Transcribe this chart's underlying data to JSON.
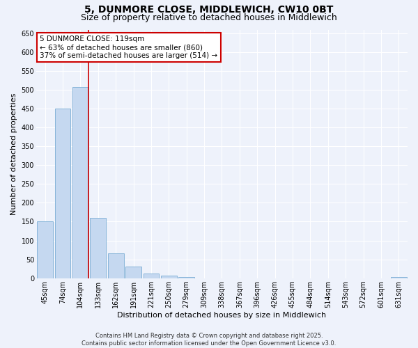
{
  "title": "5, DUNMORE CLOSE, MIDDLEWICH, CW10 0BT",
  "subtitle": "Size of property relative to detached houses in Middlewich",
  "xlabel": "Distribution of detached houses by size in Middlewich",
  "ylabel": "Number of detached properties",
  "categories": [
    "45sqm",
    "74sqm",
    "104sqm",
    "133sqm",
    "162sqm",
    "191sqm",
    "221sqm",
    "250sqm",
    "279sqm",
    "309sqm",
    "338sqm",
    "367sqm",
    "396sqm",
    "426sqm",
    "455sqm",
    "484sqm",
    "514sqm",
    "543sqm",
    "572sqm",
    "601sqm",
    "631sqm"
  ],
  "values": [
    150,
    450,
    508,
    160,
    65,
    30,
    12,
    7,
    3,
    0,
    0,
    0,
    0,
    0,
    0,
    0,
    0,
    0,
    0,
    0,
    4
  ],
  "bar_color": "#c5d8f0",
  "bar_edge_color": "#7aadd4",
  "vline_color": "#cc0000",
  "annotation_text": "5 DUNMORE CLOSE: 119sqm\n← 63% of detached houses are smaller (860)\n37% of semi-detached houses are larger (514) →",
  "annotation_box_color": "#ffffff",
  "annotation_box_edge": "#cc0000",
  "background_color": "#eef2fb",
  "grid_color": "#ffffff",
  "ylim": [
    0,
    660
  ],
  "yticks": [
    0,
    50,
    100,
    150,
    200,
    250,
    300,
    350,
    400,
    450,
    500,
    550,
    600,
    650
  ],
  "footer": "Contains HM Land Registry data © Crown copyright and database right 2025.\nContains public sector information licensed under the Open Government Licence v3.0.",
  "title_fontsize": 10,
  "subtitle_fontsize": 9,
  "axis_label_fontsize": 8,
  "tick_fontsize": 7,
  "annotation_fontsize": 7.5,
  "footer_fontsize": 6
}
